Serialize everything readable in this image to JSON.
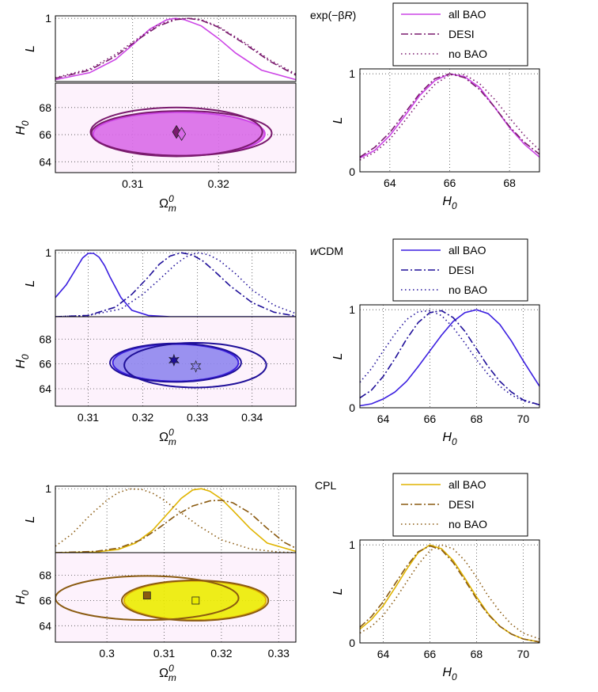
{
  "chart_data": [
    {
      "id": "expbR",
      "type": "line",
      "model_label": "exp(−βR)",
      "color": "#cc44e6",
      "dark_color": "#7a1a6e",
      "fill_color": "#d96be8",
      "marker": "diamond",
      "legend": [
        "all BAO",
        "DESI",
        "no BAO"
      ],
      "top_left": {
        "ylabel": "L",
        "xlim": [
          0.301,
          0.329
        ],
        "ylim": [
          0,
          1.04
        ],
        "yticks": [
          "1"
        ],
        "series": [
          {
            "name": "all BAO",
            "style": "solid",
            "x": [
              0.301,
              0.305,
              0.308,
              0.31,
              0.312,
              0.314,
              0.315,
              0.316,
              0.318,
              0.32,
              0.322,
              0.325,
              0.329
            ],
            "y": [
              0.03,
              0.14,
              0.35,
              0.58,
              0.83,
              0.98,
              1.0,
              0.98,
              0.88,
              0.68,
              0.45,
              0.18,
              0.03
            ]
          },
          {
            "name": "DESI",
            "style": "dashdot",
            "x": [
              0.301,
              0.305,
              0.308,
              0.311,
              0.313,
              0.315,
              0.3165,
              0.318,
              0.32,
              0.323,
              0.326,
              0.329
            ],
            "y": [
              0.05,
              0.18,
              0.4,
              0.7,
              0.88,
              0.98,
              1.0,
              0.97,
              0.86,
              0.6,
              0.32,
              0.1
            ]
          },
          {
            "name": "no BAO",
            "style": "dotted",
            "x": [
              0.301,
              0.305,
              0.308,
              0.311,
              0.313,
              0.315,
              0.3165,
              0.318,
              0.32,
              0.323,
              0.326,
              0.329
            ],
            "y": [
              0.06,
              0.2,
              0.43,
              0.72,
              0.9,
              0.99,
              1.0,
              0.98,
              0.87,
              0.62,
              0.34,
              0.12
            ]
          }
        ]
      },
      "bottom_left": {
        "xlabel": "Ωm0",
        "ylabel": "H0",
        "xlim": [
          0.301,
          0.329
        ],
        "ylim": [
          63.2,
          69.8
        ],
        "xticks": [
          0.31,
          0.32
        ],
        "xtick_labels": [
          "0.31",
          "0.32"
        ],
        "yticks": [
          64,
          66,
          68
        ],
        "ellipses": [
          {
            "name": "all BAO",
            "filled": true,
            "cx": 0.3154,
            "cy": 66.05,
            "a": 0.01,
            "b": 1.6,
            "angle": -22
          },
          {
            "name": "DESI",
            "filled": false,
            "cx": 0.3157,
            "cy": 66.1,
            "a": 0.0105,
            "b": 1.65,
            "angle": -22
          },
          {
            "name": "no BAO",
            "filled": false,
            "cx": 0.3151,
            "cy": 66.2,
            "a": 0.01,
            "b": 1.8,
            "angle": -20
          }
        ],
        "markers": [
          [
            0.3151,
            66.2
          ],
          [
            0.3157,
            66.05
          ]
        ]
      },
      "right": {
        "xlabel": "H0",
        "ylabel": "L",
        "xlim": [
          63,
          69
        ],
        "ylim": [
          0,
          1.05
        ],
        "xticks": [
          64,
          66,
          68
        ],
        "yticks": [
          0,
          1
        ],
        "series": [
          {
            "name": "all BAO",
            "style": "solid",
            "x": [
              63,
              63.5,
              64,
              64.5,
              65,
              65.5,
              66,
              66.5,
              67,
              67.5,
              68,
              68.5,
              69
            ],
            "y": [
              0.14,
              0.22,
              0.37,
              0.57,
              0.78,
              0.93,
              1.0,
              0.97,
              0.86,
              0.66,
              0.45,
              0.28,
              0.15
            ]
          },
          {
            "name": "DESI",
            "style": "dashdot",
            "x": [
              63,
              63.5,
              64,
              64.5,
              65,
              65.5,
              66,
              66.5,
              67,
              67.5,
              68,
              68.5,
              69
            ],
            "y": [
              0.15,
              0.25,
              0.4,
              0.6,
              0.8,
              0.95,
              1.0,
              0.96,
              0.84,
              0.66,
              0.46,
              0.3,
              0.18
            ]
          },
          {
            "name": "no BAO",
            "style": "dotted",
            "x": [
              63,
              63.5,
              64,
              64.5,
              65,
              65.5,
              66,
              66.5,
              67,
              67.5,
              68,
              68.5,
              69
            ],
            "y": [
              0.12,
              0.2,
              0.33,
              0.52,
              0.72,
              0.89,
              0.99,
              0.99,
              0.9,
              0.74,
              0.55,
              0.37,
              0.22
            ]
          }
        ]
      }
    },
    {
      "id": "wcdm",
      "type": "line",
      "model_label": "wCDM",
      "color": "#3b1fe0",
      "dark_color": "#1f0f99",
      "fill_color": "#8f86ee",
      "marker": "star",
      "legend": [
        "all BAO",
        "DESI",
        "no BAO"
      ],
      "top_left": {
        "ylabel": "L",
        "xlim": [
          0.304,
          0.348
        ],
        "ylim": [
          0,
          1.04
        ],
        "yticks": [
          "1"
        ],
        "series": [
          {
            "name": "all BAO",
            "style": "solid",
            "x": [
              0.304,
              0.306,
              0.308,
              0.309,
              0.31,
              0.311,
              0.312,
              0.313,
              0.314,
              0.316,
              0.318,
              0.321,
              0.325,
              0.33,
              0.348
            ],
            "y": [
              0.3,
              0.5,
              0.78,
              0.92,
              0.99,
              0.99,
              0.93,
              0.8,
              0.62,
              0.3,
              0.1,
              0.02,
              0.0,
              0.0,
              0.0
            ]
          },
          {
            "name": "DESI",
            "style": "dashdot",
            "x": [
              0.304,
              0.31,
              0.315,
              0.318,
              0.321,
              0.323,
              0.325,
              0.327,
              0.329,
              0.331,
              0.333,
              0.336,
              0.34,
              0.344,
              0.348
            ],
            "y": [
              0.0,
              0.02,
              0.15,
              0.35,
              0.62,
              0.82,
              0.95,
              1.0,
              0.97,
              0.87,
              0.72,
              0.48,
              0.22,
              0.07,
              0.01
            ]
          },
          {
            "name": "no BAO",
            "style": "dotted",
            "x": [
              0.304,
              0.31,
              0.316,
              0.32,
              0.323,
              0.326,
              0.328,
              0.33,
              0.332,
              0.334,
              0.337,
              0.34,
              0.344,
              0.348
            ],
            "y": [
              0.0,
              0.02,
              0.12,
              0.35,
              0.58,
              0.82,
              0.94,
              1.0,
              0.97,
              0.88,
              0.67,
              0.42,
              0.18,
              0.05
            ]
          }
        ]
      },
      "bottom_left": {
        "xlabel": "Ωm0",
        "ylabel": "H0",
        "xlim": [
          0.304,
          0.348
        ],
        "ylim": [
          62.6,
          69.8
        ],
        "xticks": [
          0.31,
          0.32,
          0.33,
          0.34
        ],
        "xtick_labels": [
          "0.31",
          "0.32",
          "0.33",
          "0.34"
        ],
        "yticks": [
          64,
          66,
          68
        ],
        "ellipses": [
          {
            "name": "all BAO",
            "filled": true,
            "cx": 0.326,
            "cy": 66.1,
            "a": 0.0115,
            "b": 1.5,
            "angle": -24
          },
          {
            "name": "DESI",
            "filled": false,
            "cx": 0.326,
            "cy": 66.1,
            "a": 0.012,
            "b": 1.55,
            "angle": -24
          },
          {
            "name": "no BAO",
            "filled": false,
            "cx": 0.3296,
            "cy": 65.9,
            "a": 0.013,
            "b": 1.8,
            "angle": -26
          }
        ],
        "markers": [
          [
            0.3257,
            66.3
          ],
          [
            0.3297,
            65.8
          ]
        ]
      },
      "right": {
        "xlabel": "H0",
        "ylabel": "L",
        "xlim": [
          63,
          70.7
        ],
        "ylim": [
          0,
          1.05
        ],
        "xticks": [
          64,
          66,
          68,
          70
        ],
        "yticks": [
          0,
          1
        ],
        "series": [
          {
            "name": "all BAO",
            "style": "solid",
            "x": [
              63,
              63.5,
              64,
              64.5,
              65,
              65.5,
              66,
              66.5,
              67,
              67.5,
              68,
              68.5,
              69,
              69.5,
              70,
              70.7
            ],
            "y": [
              0.02,
              0.04,
              0.09,
              0.16,
              0.27,
              0.42,
              0.58,
              0.74,
              0.88,
              0.97,
              1.0,
              0.96,
              0.85,
              0.68,
              0.48,
              0.22
            ]
          },
          {
            "name": "DESI",
            "style": "dashdot",
            "x": [
              63,
              63.5,
              64,
              64.5,
              65,
              65.5,
              66,
              66.5,
              67,
              67.5,
              68,
              68.5,
              69,
              69.5,
              70,
              70.7
            ],
            "y": [
              0.1,
              0.18,
              0.32,
              0.5,
              0.7,
              0.87,
              0.97,
              0.99,
              0.92,
              0.78,
              0.6,
              0.42,
              0.27,
              0.16,
              0.08,
              0.03
            ]
          },
          {
            "name": "no BAO",
            "style": "dotted",
            "x": [
              63,
              63.5,
              64,
              64.5,
              65,
              65.5,
              66,
              66.5,
              67,
              67.5,
              68,
              68.5,
              69,
              69.5,
              70,
              70.7
            ],
            "y": [
              0.26,
              0.4,
              0.58,
              0.75,
              0.9,
              0.98,
              0.99,
              0.94,
              0.82,
              0.66,
              0.49,
              0.34,
              0.22,
              0.13,
              0.07,
              0.03
            ]
          }
        ]
      }
    },
    {
      "id": "cpl",
      "type": "line",
      "model_label": "CPL",
      "color": "#e0b400",
      "dark_color": "#8a5a10",
      "fill_color": "#ecec00",
      "marker": "square",
      "legend": [
        "all BAO",
        "DESI",
        "no BAO"
      ],
      "top_left": {
        "ylabel": "L",
        "xlim": [
          0.291,
          0.333
        ],
        "ylim": [
          0,
          1.04
        ],
        "yticks": [
          "1"
        ],
        "series": [
          {
            "name": "all BAO",
            "style": "solid",
            "x": [
              0.291,
              0.298,
              0.302,
              0.305,
              0.308,
              0.311,
              0.313,
              0.315,
              0.3165,
              0.318,
              0.32,
              0.322,
              0.325,
              0.328,
              0.333
            ],
            "y": [
              0.0,
              0.01,
              0.05,
              0.15,
              0.35,
              0.65,
              0.85,
              0.98,
              1.0,
              0.96,
              0.84,
              0.66,
              0.38,
              0.15,
              0.02
            ]
          },
          {
            "name": "DESI",
            "style": "dashdot",
            "x": [
              0.291,
              0.298,
              0.302,
              0.306,
              0.309,
              0.312,
              0.315,
              0.318,
              0.32,
              0.322,
              0.325,
              0.328,
              0.331,
              0.333
            ],
            "y": [
              0.0,
              0.02,
              0.07,
              0.2,
              0.38,
              0.58,
              0.73,
              0.81,
              0.82,
              0.78,
              0.62,
              0.38,
              0.16,
              0.07
            ]
          },
          {
            "name": "no BAO",
            "style": "dotted",
            "x": [
              0.291,
              0.294,
              0.297,
              0.3,
              0.302,
              0.304,
              0.306,
              0.308,
              0.31,
              0.313,
              0.316,
              0.32,
              0.325,
              0.33,
              0.333
            ],
            "y": [
              0.1,
              0.3,
              0.58,
              0.82,
              0.94,
              0.995,
              0.99,
              0.93,
              0.82,
              0.62,
              0.42,
              0.2,
              0.06,
              0.01,
              0.0
            ]
          }
        ]
      },
      "bottom_left": {
        "xlabel": "Ωm0",
        "ylabel": "H0",
        "xlim": [
          0.291,
          0.333
        ],
        "ylim": [
          62.7,
          69.8
        ],
        "xticks": [
          0.3,
          0.31,
          0.32,
          0.33
        ],
        "xtick_labels": [
          "0.3",
          "0.31",
          "0.32",
          "0.33"
        ],
        "yticks": [
          64,
          66,
          68
        ],
        "ellipses": [
          {
            "name": "all BAO",
            "filled": true,
            "cx": 0.3154,
            "cy": 66.0,
            "a": 0.0124,
            "b": 1.55,
            "angle": -22
          },
          {
            "name": "DESI",
            "filled": false,
            "cx": 0.3154,
            "cy": 66.0,
            "a": 0.0128,
            "b": 1.6,
            "angle": -22
          },
          {
            "name": "no BAO",
            "filled": false,
            "cx": 0.307,
            "cy": 66.2,
            "a": 0.016,
            "b": 1.75,
            "angle": -20
          }
        ],
        "markers": [
          [
            0.307,
            66.4
          ],
          [
            0.3155,
            66.0
          ]
        ]
      },
      "right": {
        "xlabel": "H0",
        "ylabel": "L",
        "xlim": [
          63,
          70.7
        ],
        "ylim": [
          0,
          1.05
        ],
        "xticks": [
          64,
          66,
          68,
          70
        ],
        "yticks": [
          0,
          1
        ],
        "series": [
          {
            "name": "all BAO",
            "style": "solid",
            "x": [
              63,
              63.5,
              64,
              64.5,
              65,
              65.5,
              66,
              66.5,
              67,
              67.5,
              68,
              68.5,
              69,
              69.5,
              70,
              70.7
            ],
            "y": [
              0.14,
              0.24,
              0.38,
              0.56,
              0.75,
              0.92,
              1.0,
              0.96,
              0.84,
              0.66,
              0.47,
              0.3,
              0.17,
              0.09,
              0.04,
              0.01
            ]
          },
          {
            "name": "DESI",
            "style": "dashdot",
            "x": [
              63,
              63.5,
              64,
              64.5,
              65,
              65.5,
              66,
              66.5,
              67,
              67.5,
              68,
              68.5,
              69,
              69.5,
              70,
              70.7
            ],
            "y": [
              0.16,
              0.27,
              0.42,
              0.6,
              0.78,
              0.93,
              0.99,
              0.95,
              0.82,
              0.64,
              0.45,
              0.29,
              0.17,
              0.09,
              0.04,
              0.01
            ]
          },
          {
            "name": "no BAO",
            "style": "dotted",
            "x": [
              63,
              63.5,
              64,
              64.5,
              65,
              65.5,
              66,
              66.5,
              67,
              67.5,
              68,
              68.5,
              69,
              69.5,
              70,
              70.7
            ],
            "y": [
              0.1,
              0.17,
              0.28,
              0.44,
              0.62,
              0.8,
              0.94,
              1.0,
              0.96,
              0.84,
              0.67,
              0.48,
              0.32,
              0.19,
              0.1,
              0.04
            ]
          }
        ]
      }
    }
  ]
}
